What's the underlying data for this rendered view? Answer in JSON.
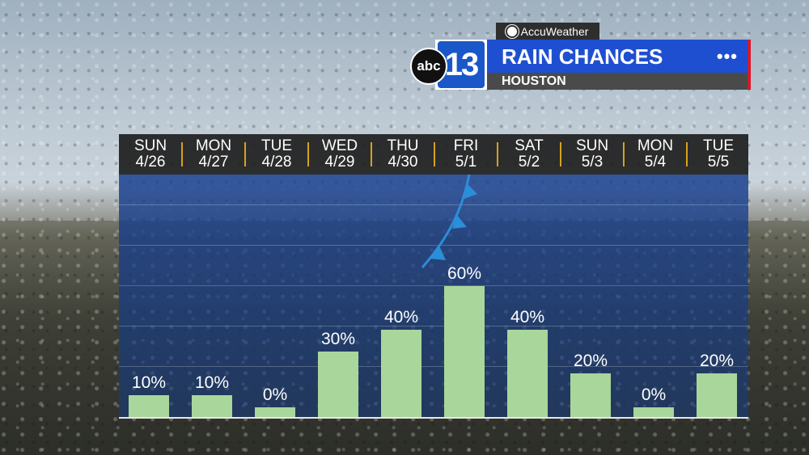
{
  "header": {
    "provider": "AccuWeather",
    "station_number": "13",
    "network": "abc",
    "title": "RAIN CHANCES",
    "location": "HOUSTON",
    "menu_dots": "•••"
  },
  "colors": {
    "bar": "#a9d69a",
    "plot_bg": "#173a8c",
    "title_bar": "#1f4fd1",
    "accent": "#d8172b",
    "separator": "#d6a21c"
  },
  "chart_data": {
    "type": "bar",
    "title": "RAIN CHANCES",
    "categories": [
      {
        "day": "SUN",
        "date": "4/26"
      },
      {
        "day": "MON",
        "date": "4/27"
      },
      {
        "day": "TUE",
        "date": "4/28"
      },
      {
        "day": "WED",
        "date": "4/29"
      },
      {
        "day": "THU",
        "date": "4/30"
      },
      {
        "day": "FRI",
        "date": "5/1"
      },
      {
        "day": "SAT",
        "date": "5/2"
      },
      {
        "day": "SUN",
        "date": "5/3"
      },
      {
        "day": "MON",
        "date": "5/4"
      },
      {
        "day": "TUE",
        "date": "5/5"
      }
    ],
    "values": [
      10,
      10,
      0,
      30,
      40,
      60,
      40,
      20,
      0,
      20
    ],
    "labels": [
      "10%",
      "10%",
      "0%",
      "30%",
      "40%",
      "60%",
      "40%",
      "20%",
      "0%",
      "20%"
    ],
    "ylim": [
      0,
      100
    ],
    "grid": true,
    "annotation": "cold front symbol near FRI 5/1"
  }
}
